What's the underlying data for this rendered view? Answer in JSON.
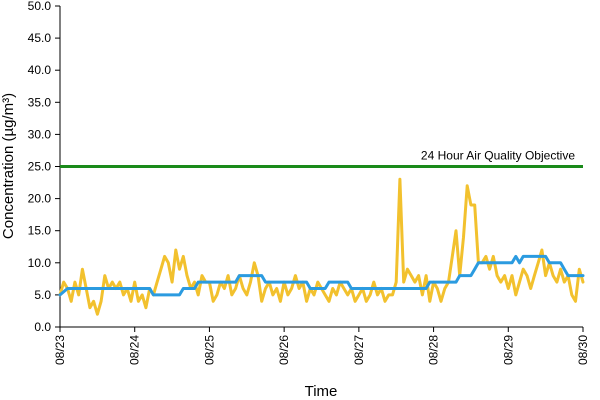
{
  "chart_data": {
    "type": "line",
    "title": "",
    "xlabel": "Time",
    "ylabel": "Concentration (µg/m³)",
    "ylim": [
      0,
      50
    ],
    "y_ticks": [
      "0.0",
      "5.0",
      "10.0",
      "15.0",
      "20.0",
      "25.0",
      "30.0",
      "35.0",
      "40.0",
      "45.0",
      "50.0"
    ],
    "x_range": [
      "08/23",
      "08/30"
    ],
    "x_ticks": [
      "08/23",
      "08/24",
      "08/25",
      "08/26",
      "08/27",
      "08/28",
      "08/29",
      "08/30"
    ],
    "grid": false,
    "reference_line": {
      "value": 25,
      "label": "24 Hour Air Quality Objective",
      "color": "#1a8a1a"
    },
    "series": [
      {
        "color": "#f2c12e",
        "points": [
          [
            0.0,
            5
          ],
          [
            0.05,
            7
          ],
          [
            0.1,
            6
          ],
          [
            0.15,
            4
          ],
          [
            0.2,
            7
          ],
          [
            0.25,
            5
          ],
          [
            0.3,
            9
          ],
          [
            0.35,
            6
          ],
          [
            0.4,
            3
          ],
          [
            0.45,
            4
          ],
          [
            0.5,
            2
          ],
          [
            0.55,
            4
          ],
          [
            0.6,
            8
          ],
          [
            0.65,
            6
          ],
          [
            0.7,
            7
          ],
          [
            0.75,
            6
          ],
          [
            0.8,
            7
          ],
          [
            0.85,
            5
          ],
          [
            0.9,
            6
          ],
          [
            0.95,
            4
          ],
          [
            1.0,
            7
          ],
          [
            1.05,
            4
          ],
          [
            1.1,
            5
          ],
          [
            1.15,
            3
          ],
          [
            1.2,
            6
          ],
          [
            1.25,
            5
          ],
          [
            1.3,
            7
          ],
          [
            1.35,
            9
          ],
          [
            1.4,
            11
          ],
          [
            1.45,
            10
          ],
          [
            1.5,
            7
          ],
          [
            1.55,
            12
          ],
          [
            1.6,
            9
          ],
          [
            1.65,
            11
          ],
          [
            1.7,
            8
          ],
          [
            1.75,
            6
          ],
          [
            1.8,
            7
          ],
          [
            1.85,
            5
          ],
          [
            1.9,
            8
          ],
          [
            1.95,
            7
          ],
          [
            2.0,
            7
          ],
          [
            2.05,
            4
          ],
          [
            2.1,
            5
          ],
          [
            2.15,
            7
          ],
          [
            2.2,
            6
          ],
          [
            2.25,
            8
          ],
          [
            2.3,
            5
          ],
          [
            2.35,
            6
          ],
          [
            2.4,
            8
          ],
          [
            2.45,
            6
          ],
          [
            2.5,
            5
          ],
          [
            2.55,
            7
          ],
          [
            2.6,
            10
          ],
          [
            2.65,
            8
          ],
          [
            2.7,
            4
          ],
          [
            2.75,
            6
          ],
          [
            2.8,
            7
          ],
          [
            2.85,
            5
          ],
          [
            2.9,
            6
          ],
          [
            2.95,
            4
          ],
          [
            3.0,
            7
          ],
          [
            3.05,
            5
          ],
          [
            3.1,
            6
          ],
          [
            3.15,
            8
          ],
          [
            3.2,
            6
          ],
          [
            3.25,
            7
          ],
          [
            3.3,
            4
          ],
          [
            3.35,
            6
          ],
          [
            3.4,
            5
          ],
          [
            3.45,
            7
          ],
          [
            3.5,
            6
          ],
          [
            3.55,
            5
          ],
          [
            3.6,
            4
          ],
          [
            3.65,
            6
          ],
          [
            3.7,
            5
          ],
          [
            3.75,
            7
          ],
          [
            3.8,
            6
          ],
          [
            3.85,
            5
          ],
          [
            3.9,
            6
          ],
          [
            3.95,
            4
          ],
          [
            4.0,
            5
          ],
          [
            4.05,
            6
          ],
          [
            4.1,
            4
          ],
          [
            4.15,
            5
          ],
          [
            4.2,
            7
          ],
          [
            4.25,
            5
          ],
          [
            4.3,
            6
          ],
          [
            4.35,
            4
          ],
          [
            4.4,
            5
          ],
          [
            4.45,
            5
          ],
          [
            4.5,
            7
          ],
          [
            4.55,
            23
          ],
          [
            4.6,
            7
          ],
          [
            4.65,
            9
          ],
          [
            4.7,
            8
          ],
          [
            4.75,
            7
          ],
          [
            4.8,
            8
          ],
          [
            4.85,
            5
          ],
          [
            4.9,
            8
          ],
          [
            4.95,
            4
          ],
          [
            5.0,
            7
          ],
          [
            5.05,
            6
          ],
          [
            5.1,
            4
          ],
          [
            5.15,
            6
          ],
          [
            5.2,
            7
          ],
          [
            5.25,
            11
          ],
          [
            5.3,
            15
          ],
          [
            5.35,
            8
          ],
          [
            5.4,
            14
          ],
          [
            5.45,
            22
          ],
          [
            5.5,
            19
          ],
          [
            5.55,
            19
          ],
          [
            5.6,
            10
          ],
          [
            5.65,
            10
          ],
          [
            5.7,
            11
          ],
          [
            5.75,
            9
          ],
          [
            5.8,
            11
          ],
          [
            5.85,
            8
          ],
          [
            5.9,
            7
          ],
          [
            5.95,
            8
          ],
          [
            6.0,
            6
          ],
          [
            6.05,
            8
          ],
          [
            6.1,
            5
          ],
          [
            6.15,
            7
          ],
          [
            6.2,
            9
          ],
          [
            6.25,
            8
          ],
          [
            6.3,
            6
          ],
          [
            6.35,
            8
          ],
          [
            6.4,
            10
          ],
          [
            6.45,
            12
          ],
          [
            6.5,
            8
          ],
          [
            6.55,
            10
          ],
          [
            6.6,
            8
          ],
          [
            6.65,
            7
          ],
          [
            6.7,
            9
          ],
          [
            6.75,
            7
          ],
          [
            6.8,
            8
          ],
          [
            6.85,
            5
          ],
          [
            6.9,
            4
          ],
          [
            6.95,
            9
          ],
          [
            7.0,
            7
          ]
        ]
      },
      {
        "color": "#2b9be0",
        "points": [
          [
            0.0,
            5
          ],
          [
            0.1,
            6
          ],
          [
            1.2,
            6
          ],
          [
            1.25,
            5
          ],
          [
            1.6,
            5
          ],
          [
            1.65,
            6
          ],
          [
            1.8,
            6
          ],
          [
            1.85,
            7
          ],
          [
            2.35,
            7
          ],
          [
            2.4,
            8
          ],
          [
            2.7,
            8
          ],
          [
            2.75,
            7
          ],
          [
            3.3,
            7
          ],
          [
            3.35,
            6
          ],
          [
            3.55,
            6
          ],
          [
            3.6,
            7
          ],
          [
            3.85,
            7
          ],
          [
            3.9,
            6
          ],
          [
            4.9,
            6
          ],
          [
            4.95,
            7
          ],
          [
            5.3,
            7
          ],
          [
            5.35,
            8
          ],
          [
            5.5,
            8
          ],
          [
            5.55,
            9
          ],
          [
            5.6,
            10
          ],
          [
            6.05,
            10
          ],
          [
            6.1,
            11
          ],
          [
            6.15,
            10
          ],
          [
            6.2,
            11
          ],
          [
            6.5,
            11
          ],
          [
            6.55,
            10
          ],
          [
            6.7,
            10
          ],
          [
            6.75,
            9
          ],
          [
            6.8,
            8
          ],
          [
            7.0,
            8
          ]
        ]
      }
    ]
  }
}
